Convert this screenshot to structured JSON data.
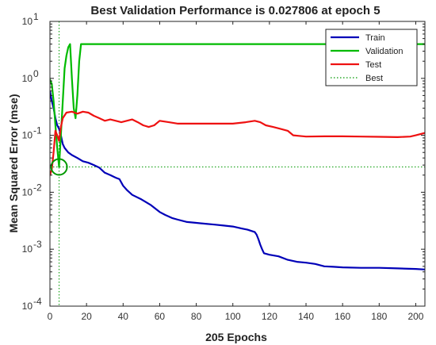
{
  "chart_data": {
    "type": "line",
    "title": "Best Validation Performance is 0.027806 at epoch 5",
    "xlabel": "205 Epochs",
    "ylabel": "Mean Squared Error  (mse)",
    "xlim": [
      0,
      205
    ],
    "ylim": [
      0.0001,
      10
    ],
    "yscale": "log",
    "grid": false,
    "legend_placement": "top-right",
    "x_ticks": [
      0,
      20,
      40,
      60,
      80,
      100,
      120,
      140,
      160,
      180,
      200
    ],
    "x_tick_labels": [
      "0",
      "20",
      "40",
      "60",
      "80",
      "100",
      "120",
      "140",
      "160",
      "180",
      "200"
    ],
    "y_ticks": [
      0.0001,
      0.001,
      0.01,
      0.1,
      1,
      10
    ],
    "y_tick_labels": [
      {
        "base": "10",
        "exp": "-4"
      },
      {
        "base": "10",
        "exp": "-3"
      },
      {
        "base": "10",
        "exp": "-2"
      },
      {
        "base": "10",
        "exp": "-1"
      },
      {
        "base": "10",
        "exp": "0"
      },
      {
        "base": "10",
        "exp": "1"
      }
    ],
    "series": [
      {
        "name": "Train",
        "color": "#0000b8",
        "style": "solid",
        "points": [
          [
            0,
            0.6
          ],
          [
            1,
            0.4
          ],
          [
            2,
            0.3
          ],
          [
            3,
            0.2
          ],
          [
            4,
            0.15
          ],
          [
            5,
            0.13
          ],
          [
            6,
            0.1
          ],
          [
            7,
            0.07
          ],
          [
            8,
            0.06
          ],
          [
            10,
            0.05
          ],
          [
            12,
            0.045
          ],
          [
            15,
            0.04
          ],
          [
            18,
            0.035
          ],
          [
            21,
            0.033
          ],
          [
            24,
            0.03
          ],
          [
            27,
            0.027
          ],
          [
            30,
            0.022
          ],
          [
            33,
            0.02
          ],
          [
            36,
            0.018
          ],
          [
            38,
            0.017
          ],
          [
            40,
            0.013
          ],
          [
            42,
            0.011
          ],
          [
            45,
            0.009
          ],
          [
            50,
            0.0075
          ],
          [
            55,
            0.006
          ],
          [
            60,
            0.0045
          ],
          [
            63,
            0.004
          ],
          [
            67,
            0.0035
          ],
          [
            70,
            0.0033
          ],
          [
            75,
            0.003
          ],
          [
            80,
            0.0029
          ],
          [
            85,
            0.0028
          ],
          [
            90,
            0.0027
          ],
          [
            95,
            0.0026
          ],
          [
            100,
            0.0025
          ],
          [
            105,
            0.0023
          ],
          [
            108,
            0.0022
          ],
          [
            110,
            0.0021
          ],
          [
            112,
            0.002
          ],
          [
            113,
            0.0018
          ],
          [
            114,
            0.0015
          ],
          [
            115,
            0.0012
          ],
          [
            116,
            0.001
          ],
          [
            117,
            0.00085
          ],
          [
            120,
            0.0008
          ],
          [
            125,
            0.00075
          ],
          [
            130,
            0.00065
          ],
          [
            135,
            0.0006
          ],
          [
            140,
            0.00058
          ],
          [
            145,
            0.00055
          ],
          [
            150,
            0.0005
          ],
          [
            155,
            0.00049
          ],
          [
            160,
            0.00048
          ],
          [
            170,
            0.00047
          ],
          [
            180,
            0.00047
          ],
          [
            190,
            0.00046
          ],
          [
            200,
            0.00045
          ],
          [
            205,
            0.00044
          ]
        ]
      },
      {
        "name": "Validation",
        "color": "#00bb00",
        "style": "solid",
        "points": [
          [
            0,
            0.95
          ],
          [
            1,
            0.8
          ],
          [
            2,
            0.4
          ],
          [
            3,
            0.15
          ],
          [
            4,
            0.06
          ],
          [
            5,
            0.028
          ],
          [
            6,
            0.1
          ],
          [
            7,
            0.4
          ],
          [
            8,
            1.5
          ],
          [
            9,
            2.5
          ],
          [
            10,
            3.5
          ],
          [
            11,
            4.0
          ],
          [
            12,
            1.0
          ],
          [
            13,
            0.3
          ],
          [
            14,
            0.2
          ],
          [
            15,
            0.5
          ],
          [
            16,
            2.0
          ],
          [
            17,
            4.0
          ],
          [
            18,
            4.0
          ],
          [
            40,
            4.0
          ],
          [
            80,
            4.0
          ],
          [
            120,
            4.0
          ],
          [
            160,
            4.0
          ],
          [
            205,
            4.0
          ]
        ]
      },
      {
        "name": "Test",
        "color": "#ee1111",
        "style": "solid",
        "points": [
          [
            0,
            0.02
          ],
          [
            1,
            0.025
          ],
          [
            2,
            0.05
          ],
          [
            3,
            0.12
          ],
          [
            4,
            0.1
          ],
          [
            5,
            0.08
          ],
          [
            6,
            0.14
          ],
          [
            7,
            0.2
          ],
          [
            9,
            0.25
          ],
          [
            12,
            0.26
          ],
          [
            15,
            0.24
          ],
          [
            18,
            0.26
          ],
          [
            21,
            0.25
          ],
          [
            24,
            0.22
          ],
          [
            27,
            0.2
          ],
          [
            30,
            0.18
          ],
          [
            33,
            0.19
          ],
          [
            36,
            0.18
          ],
          [
            39,
            0.17
          ],
          [
            42,
            0.18
          ],
          [
            45,
            0.19
          ],
          [
            48,
            0.17
          ],
          [
            51,
            0.15
          ],
          [
            54,
            0.14
          ],
          [
            57,
            0.15
          ],
          [
            60,
            0.18
          ],
          [
            65,
            0.17
          ],
          [
            70,
            0.16
          ],
          [
            80,
            0.16
          ],
          [
            90,
            0.16
          ],
          [
            100,
            0.16
          ],
          [
            107,
            0.17
          ],
          [
            112,
            0.18
          ],
          [
            115,
            0.17
          ],
          [
            118,
            0.15
          ],
          [
            122,
            0.14
          ],
          [
            126,
            0.13
          ],
          [
            130,
            0.12
          ],
          [
            133,
            0.1
          ],
          [
            140,
            0.095
          ],
          [
            150,
            0.096
          ],
          [
            160,
            0.096
          ],
          [
            170,
            0.095
          ],
          [
            180,
            0.094
          ],
          [
            190,
            0.093
          ],
          [
            197,
            0.095
          ],
          [
            200,
            0.1
          ],
          [
            205,
            0.11
          ]
        ]
      },
      {
        "name": "Best",
        "color": "#009900",
        "style": "dotted"
      }
    ],
    "best": {
      "epoch": 5,
      "value": 0.027806
    }
  }
}
